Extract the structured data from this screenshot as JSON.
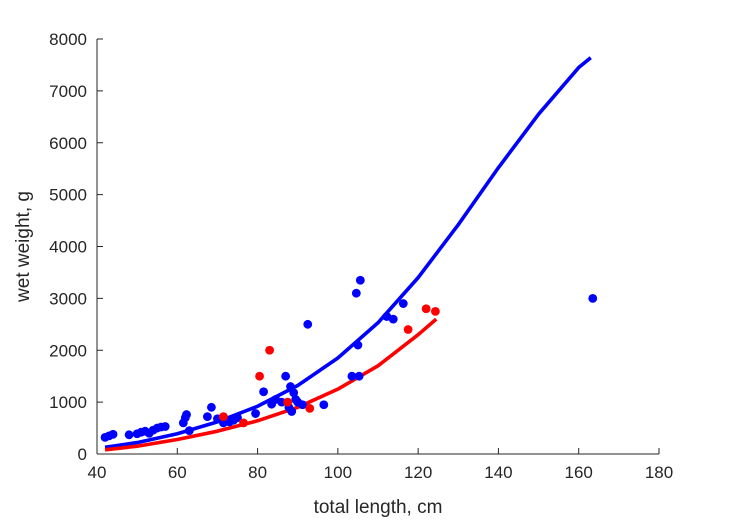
{
  "chart_data": {
    "type": "scatter",
    "title": "",
    "xlabel": "total length, cm",
    "ylabel": "wet weight, g",
    "xlim": [
      40,
      180
    ],
    "ylim": [
      0,
      8000
    ],
    "xticks": [
      40,
      60,
      80,
      100,
      120,
      140,
      160,
      180
    ],
    "yticks": [
      0,
      1000,
      2000,
      3000,
      4000,
      5000,
      6000,
      7000,
      8000
    ],
    "grid": false,
    "legend": "none",
    "series": [
      {
        "color": "#0000ff",
        "kind": "points",
        "points": [
          [
            42,
            320
          ],
          [
            43,
            350
          ],
          [
            44,
            380
          ],
          [
            48,
            370
          ],
          [
            50,
            390
          ],
          [
            51,
            420
          ],
          [
            52,
            440
          ],
          [
            53,
            400
          ],
          [
            54,
            460
          ],
          [
            55,
            500
          ],
          [
            56,
            520
          ],
          [
            57,
            530
          ],
          [
            61.5,
            600
          ],
          [
            62,
            700
          ],
          [
            62.3,
            760
          ],
          [
            63,
            450
          ],
          [
            67.5,
            720
          ],
          [
            68.5,
            900
          ],
          [
            70,
            680
          ],
          [
            71.5,
            600
          ],
          [
            73,
            620
          ],
          [
            74,
            650
          ],
          [
            75,
            700
          ],
          [
            79.5,
            780
          ],
          [
            81.5,
            1200
          ],
          [
            83.5,
            960
          ],
          [
            84.5,
            1050
          ],
          [
            86,
            1000
          ],
          [
            87,
            1500
          ],
          [
            87.8,
            900
          ],
          [
            88.2,
            1300
          ],
          [
            88.5,
            820
          ],
          [
            89,
            1180
          ],
          [
            89.5,
            1050
          ],
          [
            90,
            1000
          ],
          [
            91.2,
            950
          ],
          [
            92.5,
            2500
          ],
          [
            96.5,
            950
          ],
          [
            103.5,
            1500
          ],
          [
            104.6,
            3100
          ],
          [
            105,
            2100
          ],
          [
            105.3,
            1500
          ],
          [
            105.6,
            3350
          ],
          [
            112.2,
            2650
          ],
          [
            113.8,
            2600
          ],
          [
            116.3,
            2900
          ],
          [
            163.5,
            3000
          ]
        ]
      },
      {
        "color": "#ff0000",
        "kind": "points",
        "points": [
          [
            71.5,
            720
          ],
          [
            76.5,
            600
          ],
          [
            80.5,
            1500
          ],
          [
            83,
            2000
          ],
          [
            87.5,
            1000
          ],
          [
            93,
            880
          ],
          [
            117.5,
            2400
          ],
          [
            122,
            2800
          ],
          [
            124.3,
            2750
          ]
        ]
      },
      {
        "color": "#0000ff",
        "kind": "fit-line",
        "points": [
          [
            42,
            130
          ],
          [
            50,
            220
          ],
          [
            60,
            390
          ],
          [
            70,
            620
          ],
          [
            80,
            920
          ],
          [
            90,
            1320
          ],
          [
            100,
            1850
          ],
          [
            110,
            2530
          ],
          [
            120,
            3400
          ],
          [
            130,
            4420
          ],
          [
            140,
            5520
          ],
          [
            150,
            6550
          ],
          [
            160,
            7450
          ],
          [
            163,
            7640
          ]
        ]
      },
      {
        "color": "#ff0000",
        "kind": "fit-line",
        "points": [
          [
            42,
            80
          ],
          [
            50,
            150
          ],
          [
            60,
            280
          ],
          [
            70,
            440
          ],
          [
            80,
            640
          ],
          [
            90,
            900
          ],
          [
            100,
            1250
          ],
          [
            110,
            1700
          ],
          [
            120,
            2300
          ],
          [
            124.5,
            2600
          ]
        ]
      }
    ]
  }
}
